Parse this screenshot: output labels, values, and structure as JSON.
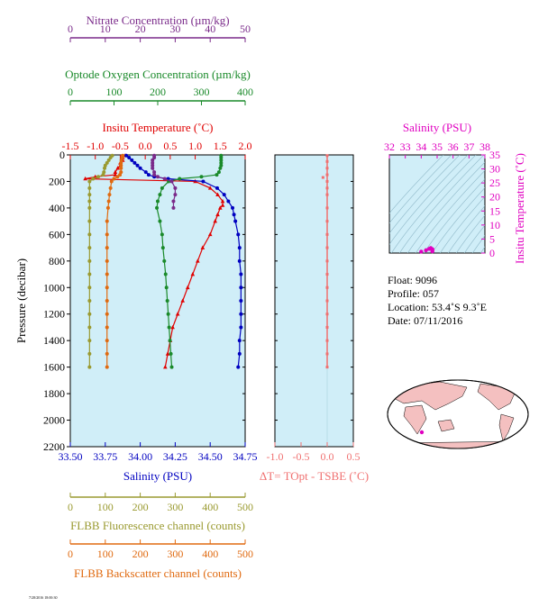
{
  "chart_data": [
    {
      "type": "line",
      "panel": "main-profile",
      "top_axes": [
        {
          "name": "nitrate",
          "title": "Nitrate Concentration (µm/kg)",
          "color": "#7a2a8a",
          "range": [
            0,
            50
          ],
          "ticks": [
            0,
            10,
            20,
            30,
            40,
            50
          ]
        },
        {
          "name": "oxygen",
          "title": "Optode Oxygen Concentration (µm/kg)",
          "color": "#1a8a2a",
          "range": [
            0,
            400
          ],
          "ticks": [
            0,
            100,
            200,
            300,
            400
          ]
        },
        {
          "name": "temperature",
          "title": "Insitu Temperature (˚C)",
          "color": "#e00000",
          "range": [
            -1.5,
            2.0
          ],
          "ticks": [
            -1.5,
            -1.0,
            -0.5,
            0.0,
            0.5,
            1.0,
            1.5,
            2.0
          ],
          "tick_labels": [
            "-1.5",
            "-1.0",
            "-0.5",
            "0.0",
            "0.5",
            "1.0",
            "1.5",
            "2.0"
          ]
        }
      ],
      "bottom_axes": [
        {
          "name": "salinity",
          "title": "Salinity (PSU)",
          "color": "#0000c0",
          "range": [
            33.5,
            34.75
          ],
          "ticks": [
            33.5,
            33.75,
            34.0,
            34.25,
            34.5,
            34.75
          ],
          "tick_labels": [
            "33.50",
            "33.75",
            "34.00",
            "34.25",
            "34.50",
            "34.75"
          ]
        },
        {
          "name": "fluorescence",
          "title": "FLBB Fluorescence channel (counts)",
          "color": "#9a9a30",
          "range": [
            0,
            500
          ],
          "ticks": [
            0,
            100,
            200,
            300,
            400,
            500
          ]
        },
        {
          "name": "backscatter",
          "title": "FLBB Backscatter channel (counts)",
          "color": "#e06a10",
          "range": [
            0,
            500
          ],
          "ticks": [
            0,
            100,
            200,
            300,
            400,
            500
          ]
        }
      ],
      "ylabel": "Pressure (decibar)",
      "ylim": [
        0,
        2200
      ],
      "yticks": [
        0,
        200,
        400,
        600,
        800,
        1000,
        1200,
        1400,
        1600,
        1800,
        2000,
        2200
      ],
      "y_inverted": true,
      "background": "#d0eef8",
      "series": [
        {
          "axis": "temperature",
          "color": "#e00000",
          "marker": "triangle",
          "y": [
            5,
            20,
            40,
            60,
            80,
            100,
            130,
            150,
            165,
            180,
            200,
            250,
            300,
            350,
            380,
            400,
            450,
            500,
            600,
            700,
            800,
            900,
            1000,
            1100,
            1200,
            1300,
            1400,
            1500,
            1600
          ],
          "x": [
            -0.4,
            -0.45,
            -0.45,
            -0.5,
            -0.5,
            -0.55,
            -0.6,
            -0.6,
            -1.0,
            -1.2,
            1.0,
            1.3,
            1.45,
            1.55,
            1.55,
            1.5,
            1.45,
            1.4,
            1.3,
            1.15,
            1.05,
            0.95,
            0.85,
            0.75,
            0.65,
            0.55,
            0.5,
            0.45,
            0.4
          ]
        },
        {
          "axis": "salinity",
          "color": "#0000c0",
          "marker": "circle",
          "y": [
            5,
            20,
            40,
            60,
            80,
            100,
            130,
            150,
            165,
            180,
            200,
            250,
            300,
            350,
            400,
            450,
            500,
            600,
            700,
            800,
            900,
            1000,
            1100,
            1200,
            1300,
            1400,
            1500,
            1600
          ],
          "x": [
            33.9,
            33.92,
            33.94,
            33.96,
            33.98,
            34.0,
            34.04,
            34.06,
            34.1,
            34.2,
            34.45,
            34.55,
            34.6,
            34.63,
            34.66,
            34.67,
            34.68,
            34.7,
            34.71,
            34.71,
            34.72,
            34.72,
            34.72,
            34.72,
            34.72,
            34.71,
            34.71,
            34.7
          ]
        },
        {
          "axis": "oxygen",
          "color": "#1a8a2a",
          "marker": "circle",
          "y": [
            5,
            20,
            40,
            60,
            80,
            100,
            130,
            150,
            165,
            180,
            200,
            250,
            300,
            350,
            400,
            500,
            600,
            700,
            800,
            900,
            1000,
            1100,
            1200,
            1300,
            1400,
            1500,
            1600
          ],
          "x": [
            345,
            345,
            345,
            345,
            345,
            343,
            340,
            335,
            300,
            250,
            225,
            210,
            205,
            200,
            198,
            205,
            210,
            212,
            215,
            218,
            220,
            222,
            224,
            226,
            228,
            230,
            232
          ]
        },
        {
          "axis": "nitrate",
          "color": "#7a2a8a",
          "marker": "circle",
          "y": [
            5,
            20,
            40,
            60,
            80,
            100,
            130,
            150,
            165,
            180,
            200,
            250,
            300,
            350,
            400
          ],
          "x": [
            24,
            24,
            23.5,
            23.5,
            23.5,
            23.5,
            24,
            24,
            25,
            27,
            29,
            30,
            30,
            29.5,
            29.5
          ]
        },
        {
          "axis": "fluorescence",
          "color": "#9a9a30",
          "marker": "circle",
          "y": [
            5,
            20,
            40,
            60,
            80,
            100,
            130,
            150,
            165,
            180,
            200,
            250,
            300,
            350,
            400,
            500,
            600,
            700,
            800,
            900,
            1000,
            1100,
            1200,
            1300,
            1400,
            1500,
            1600
          ],
          "x": [
            120,
            115,
            110,
            105,
            100,
            98,
            96,
            94,
            80,
            65,
            55,
            55,
            55,
            55,
            55,
            55,
            55,
            55,
            55,
            55,
            55,
            55,
            55,
            55,
            55,
            55,
            55
          ]
        },
        {
          "axis": "backscatter",
          "color": "#e06a10",
          "marker": "circle",
          "y": [
            5,
            20,
            40,
            60,
            80,
            100,
            130,
            150,
            165,
            180,
            200,
            250,
            300,
            350,
            400,
            500,
            600,
            700,
            800,
            900,
            1000,
            1100,
            1200,
            1300,
            1400,
            1500,
            1600
          ],
          "x": [
            150,
            148,
            146,
            145,
            145,
            145,
            145,
            142,
            135,
            125,
            118,
            115,
            112,
            110,
            108,
            105,
            105,
            105,
            105,
            105,
            105,
            105,
            105,
            105,
            105,
            105,
            105
          ]
        }
      ]
    },
    {
      "type": "scatter",
      "panel": "delta-t",
      "xlabel": "ΔT= TOpt - TSBE (˚C)",
      "xlim": [
        -1.0,
        0.5
      ],
      "xticks": [
        -1.0,
        -0.5,
        0.0,
        0.5
      ],
      "xtick_labels": [
        "-1.0",
        "-0.5",
        "0.0",
        "0.5"
      ],
      "color": "#f07070",
      "y": [
        5,
        50,
        100,
        150,
        200,
        250,
        300,
        400,
        500,
        600,
        700,
        800,
        900,
        1000,
        1100,
        1200,
        1300,
        1400,
        1500,
        1600
      ],
      "x": [
        0.0,
        0.0,
        0.0,
        0.0,
        0.0,
        0.0,
        0.0,
        0.0,
        0.0,
        0.0,
        0.0,
        0.0,
        0.0,
        0.0,
        0.0,
        0.0,
        0.0,
        0.0,
        0.0,
        0.0
      ],
      "outliers": [
        {
          "x": -0.08,
          "y": 170
        }
      ]
    },
    {
      "type": "scatter",
      "panel": "ts-diagram",
      "title": "Salinity (PSU)",
      "xlim": [
        32,
        38
      ],
      "xticks": [
        32,
        33,
        34,
        35,
        36,
        37,
        38
      ],
      "ylabel": "Insitu Temperature (˚C)",
      "ylim": [
        0,
        35
      ],
      "yticks": [
        0,
        5,
        10,
        15,
        20,
        25,
        30,
        35
      ],
      "color": "#e000c0",
      "points": [
        {
          "x": 34.0,
          "y": 0.5
        },
        {
          "x": 34.3,
          "y": 1.0
        },
        {
          "x": 34.5,
          "y": 1.5
        },
        {
          "x": 34.6,
          "y": 1.8
        },
        {
          "x": 34.7,
          "y": 1.4
        },
        {
          "x": 34.7,
          "y": 1.0
        },
        {
          "x": 34.7,
          "y": 0.6
        }
      ]
    }
  ],
  "info": {
    "float": "Float:  9096",
    "profile": "Profile:  057",
    "location": "Location:  53.4˚S   9.3˚E",
    "date": "Date:  07/11/2016"
  },
  "map": {
    "land_color": "#f4c0c0",
    "marker_color": "#e000c0"
  },
  "footer_text": "7/28/2016 18:00:30"
}
